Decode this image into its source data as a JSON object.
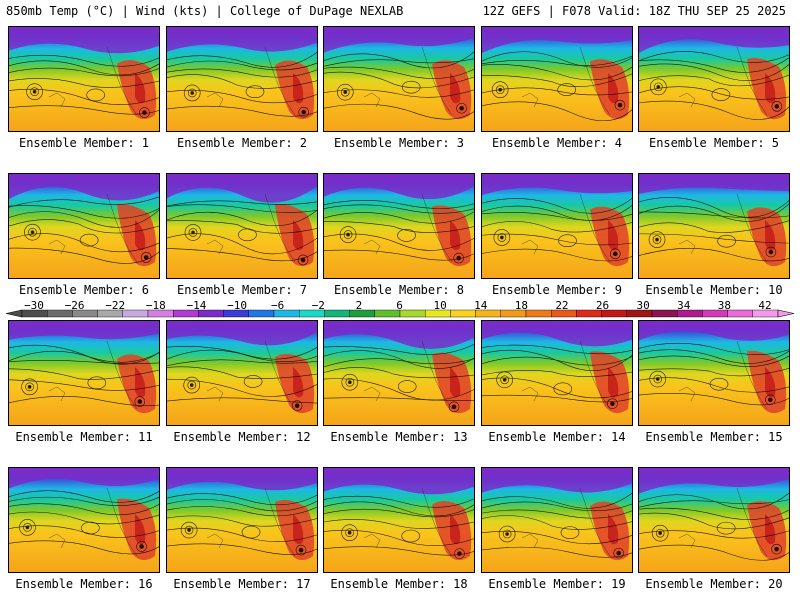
{
  "header": {
    "left": "850mb Temp (°C) | Wind (kts) | College of DuPage NEXLAB",
    "right": "12Z GEFS | F078 Valid: 18Z THU SEP 25 2025"
  },
  "members": [
    "Ensemble Member: 1",
    "Ensemble Member: 2",
    "Ensemble Member: 3",
    "Ensemble Member: 4",
    "Ensemble Member: 5",
    "Ensemble Member: 6",
    "Ensemble Member: 7",
    "Ensemble Member: 8",
    "Ensemble Member: 9",
    "Ensemble Member: 10",
    "Ensemble Member: 11",
    "Ensemble Member: 12",
    "Ensemble Member: 13",
    "Ensemble Member: 14",
    "Ensemble Member: 15",
    "Ensemble Member: 16",
    "Ensemble Member: 17",
    "Ensemble Member: 18",
    "Ensemble Member: 19",
    "Ensemble Member: 20"
  ],
  "colorbar": {
    "labels": [
      "−30",
      "−26",
      "−22",
      "−18",
      "−14",
      "−10",
      "−6",
      "−2",
      "2",
      "6",
      "10",
      "14",
      "18",
      "22",
      "26",
      "30",
      "34",
      "38",
      "42"
    ],
    "colors": [
      "#4d4d4d",
      "#6b6b6b",
      "#8a8a8a",
      "#a8a8a8",
      "#c9a8e0",
      "#d37fe3",
      "#b33ad3",
      "#7a2cc9",
      "#3b3bd9",
      "#1f77e6",
      "#1fb7e6",
      "#19d9c9",
      "#13b57a",
      "#1e9e3c",
      "#5fbf2a",
      "#a6d92a",
      "#e8e81f",
      "#f9d21c",
      "#f7b41a",
      "#f29a1a",
      "#ee7a1a",
      "#e85a1a",
      "#df2a1a",
      "#c21818",
      "#9e1616",
      "#8c1252",
      "#b01a8c",
      "#d43ab8",
      "#ea6ad8",
      "#f59aea"
    ]
  }
}
